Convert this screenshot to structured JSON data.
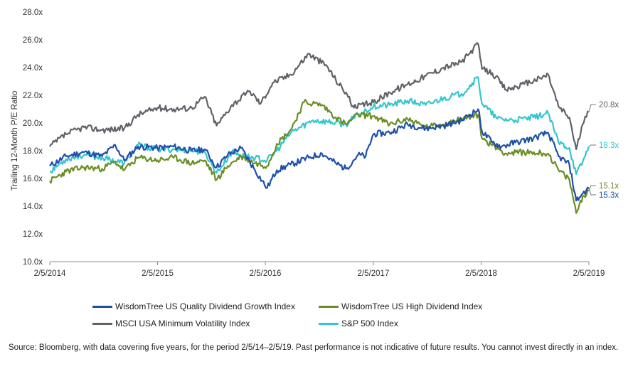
{
  "chart_data": {
    "type": "line",
    "title": "",
    "ylabel": "Trailing 12-Month P/E Ratio",
    "xlabel": "",
    "ylim": [
      10.0,
      28.0
    ],
    "xlim": [
      "2014-02-05",
      "2019-02-05"
    ],
    "y_ticks": [
      "10.0x",
      "12.0x",
      "14.0x",
      "16.0x",
      "18.0x",
      "20.0x",
      "22.0x",
      "24.0x",
      "26.0x",
      "28.0x"
    ],
    "y_tick_values": [
      10,
      12,
      14,
      16,
      18,
      20,
      22,
      24,
      26,
      28
    ],
    "x_ticks": [
      "2/5/2014",
      "2/5/2015",
      "2/5/2016",
      "2/5/2017",
      "2/5/2018",
      "2/5/2019"
    ],
    "x_tick_dates": [
      "2014-02-05",
      "2015-02-05",
      "2016-02-05",
      "2017-02-05",
      "2018-02-05",
      "2019-02-05"
    ],
    "grid": false,
    "legend_position": "bottom",
    "series": [
      {
        "name": "WisdomTree US Quality Dividend Growth Index",
        "color": "#1f4fa8",
        "end_label": "15.3x",
        "points": [
          [
            "2014-02-05",
            16.9
          ],
          [
            "2014-04-01",
            17.6
          ],
          [
            "2014-06-01",
            17.9
          ],
          [
            "2014-08-01",
            17.6
          ],
          [
            "2014-09-15",
            18.4
          ],
          [
            "2014-10-15",
            17.3
          ],
          [
            "2014-12-01",
            18.3
          ],
          [
            "2015-02-05",
            18.2
          ],
          [
            "2015-04-01",
            18.3
          ],
          [
            "2015-06-01",
            18.0
          ],
          [
            "2015-07-15",
            18.1
          ],
          [
            "2015-08-24",
            16.8
          ],
          [
            "2015-10-01",
            17.7
          ],
          [
            "2015-11-15",
            18.2
          ],
          [
            "2016-01-01",
            16.6
          ],
          [
            "2016-02-11",
            15.3
          ],
          [
            "2016-03-15",
            16.6
          ],
          [
            "2016-05-01",
            17.0
          ],
          [
            "2016-07-01",
            17.5
          ],
          [
            "2016-08-15",
            17.8
          ],
          [
            "2016-10-01",
            17.1
          ],
          [
            "2016-11-04",
            16.7
          ],
          [
            "2016-12-15",
            17.7
          ],
          [
            "2017-01-10",
            17.6
          ],
          [
            "2017-02-05",
            19.2
          ],
          [
            "2017-04-01",
            19.3
          ],
          [
            "2017-06-01",
            19.9
          ],
          [
            "2017-08-01",
            19.6
          ],
          [
            "2017-10-01",
            19.8
          ],
          [
            "2017-12-01",
            20.2
          ],
          [
            "2018-01-26",
            21.0
          ],
          [
            "2018-02-08",
            19.4
          ],
          [
            "2018-03-15",
            18.6
          ],
          [
            "2018-04-15",
            18.3
          ],
          [
            "2018-06-01",
            18.6
          ],
          [
            "2018-08-01",
            18.9
          ],
          [
            "2018-09-20",
            19.3
          ],
          [
            "2018-10-25",
            17.6
          ],
          [
            "2018-12-01",
            17.0
          ],
          [
            "2018-12-24",
            14.4
          ],
          [
            "2019-01-15",
            14.9
          ],
          [
            "2019-02-05",
            15.3
          ]
        ]
      },
      {
        "name": "WisdomTree US High Dividend Index",
        "color": "#6b8e23",
        "end_label": "15.1x",
        "points": [
          [
            "2014-02-05",
            15.8
          ],
          [
            "2014-04-01",
            16.5
          ],
          [
            "2014-06-01",
            16.8
          ],
          [
            "2014-08-01",
            16.7
          ],
          [
            "2014-09-15",
            17.2
          ],
          [
            "2014-10-15",
            16.6
          ],
          [
            "2014-12-01",
            17.5
          ],
          [
            "2015-02-05",
            17.3
          ],
          [
            "2015-04-01",
            17.5
          ],
          [
            "2015-06-01",
            17.1
          ],
          [
            "2015-07-15",
            17.3
          ],
          [
            "2015-08-24",
            15.9
          ],
          [
            "2015-10-01",
            16.9
          ],
          [
            "2015-11-15",
            17.6
          ],
          [
            "2016-01-01",
            17.1
          ],
          [
            "2016-02-11",
            16.9
          ],
          [
            "2016-03-15",
            18.5
          ],
          [
            "2016-05-01",
            19.5
          ],
          [
            "2016-06-15",
            21.5
          ],
          [
            "2016-08-15",
            21.3
          ],
          [
            "2016-10-01",
            20.4
          ],
          [
            "2016-11-04",
            19.9
          ],
          [
            "2016-12-15",
            20.6
          ],
          [
            "2017-02-05",
            20.5
          ],
          [
            "2017-04-01",
            19.9
          ],
          [
            "2017-06-01",
            20.3
          ],
          [
            "2017-08-01",
            19.7
          ],
          [
            "2017-10-01",
            19.9
          ],
          [
            "2017-12-01",
            20.3
          ],
          [
            "2018-01-26",
            20.6
          ],
          [
            "2018-02-08",
            18.9
          ],
          [
            "2018-03-15",
            18.4
          ],
          [
            "2018-05-01",
            17.8
          ],
          [
            "2018-07-01",
            17.9
          ],
          [
            "2018-09-20",
            17.8
          ],
          [
            "2018-10-25",
            16.6
          ],
          [
            "2018-12-01",
            15.9
          ],
          [
            "2018-12-24",
            13.5
          ],
          [
            "2019-01-15",
            14.7
          ],
          [
            "2019-02-05",
            15.1
          ]
        ]
      },
      {
        "name": "MSCI USA Minimum Volatility Index",
        "color": "#5f6368",
        "end_label": "20.8x",
        "points": [
          [
            "2014-02-05",
            18.3
          ],
          [
            "2014-04-01",
            19.2
          ],
          [
            "2014-06-01",
            19.7
          ],
          [
            "2014-08-01",
            19.5
          ],
          [
            "2014-10-15",
            19.6
          ],
          [
            "2014-12-01",
            20.6
          ],
          [
            "2015-02-05",
            21.1
          ],
          [
            "2015-04-01",
            21.0
          ],
          [
            "2015-06-01",
            21.1
          ],
          [
            "2015-07-15",
            21.9
          ],
          [
            "2015-08-24",
            19.8
          ],
          [
            "2015-10-15",
            21.3
          ],
          [
            "2015-12-15",
            22.3
          ],
          [
            "2016-01-20",
            21.4
          ],
          [
            "2016-03-01",
            22.9
          ],
          [
            "2016-05-01",
            23.5
          ],
          [
            "2016-07-01",
            25.0
          ],
          [
            "2016-09-01",
            24.1
          ],
          [
            "2016-10-01",
            23.1
          ],
          [
            "2016-11-04",
            22.2
          ],
          [
            "2016-12-01",
            21.1
          ],
          [
            "2017-02-05",
            21.5
          ],
          [
            "2017-04-01",
            22.2
          ],
          [
            "2017-06-01",
            22.8
          ],
          [
            "2017-08-01",
            23.4
          ],
          [
            "2017-10-01",
            24.0
          ],
          [
            "2017-12-01",
            24.4
          ],
          [
            "2018-01-26",
            25.7
          ],
          [
            "2018-02-08",
            23.9
          ],
          [
            "2018-03-15",
            23.6
          ],
          [
            "2018-05-01",
            22.4
          ],
          [
            "2018-07-01",
            22.8
          ],
          [
            "2018-09-01",
            23.3
          ],
          [
            "2018-09-20",
            23.5
          ],
          [
            "2018-10-25",
            21.2
          ],
          [
            "2018-12-01",
            20.4
          ],
          [
            "2018-12-24",
            18.1
          ],
          [
            "2019-01-15",
            19.9
          ],
          [
            "2019-02-05",
            20.8
          ]
        ]
      },
      {
        "name": "S&P 500 Index",
        "color": "#33c5d0",
        "end_label": "18.3x",
        "points": [
          [
            "2014-02-05",
            16.5
          ],
          [
            "2014-04-01",
            17.4
          ],
          [
            "2014-06-01",
            17.7
          ],
          [
            "2014-08-01",
            17.5
          ],
          [
            "2014-10-15",
            17.1
          ],
          [
            "2014-12-01",
            18.4
          ],
          [
            "2015-02-05",
            18.1
          ],
          [
            "2015-04-01",
            18.1
          ],
          [
            "2015-06-01",
            18.0
          ],
          [
            "2015-07-15",
            17.9
          ],
          [
            "2015-08-24",
            16.4
          ],
          [
            "2015-10-15",
            17.9
          ],
          [
            "2015-12-01",
            17.6
          ],
          [
            "2016-02-11",
            17.3
          ],
          [
            "2016-03-15",
            18.0
          ],
          [
            "2016-05-01",
            19.3
          ],
          [
            "2016-07-15",
            20.2
          ],
          [
            "2016-09-01",
            20.1
          ],
          [
            "2016-11-04",
            19.9
          ],
          [
            "2016-12-15",
            20.6
          ],
          [
            "2017-02-05",
            21.2
          ],
          [
            "2017-04-01",
            21.3
          ],
          [
            "2017-06-01",
            21.6
          ],
          [
            "2017-08-01",
            21.3
          ],
          [
            "2017-10-01",
            21.8
          ],
          [
            "2017-12-01",
            22.1
          ],
          [
            "2018-01-26",
            23.3
          ],
          [
            "2018-02-08",
            21.4
          ],
          [
            "2018-04-01",
            20.3
          ],
          [
            "2018-06-01",
            20.2
          ],
          [
            "2018-08-01",
            20.4
          ],
          [
            "2018-09-20",
            20.7
          ],
          [
            "2018-10-25",
            18.6
          ],
          [
            "2018-12-01",
            18.2
          ],
          [
            "2018-12-24",
            16.3
          ],
          [
            "2019-01-15",
            17.2
          ],
          [
            "2019-02-05",
            18.3
          ]
        ]
      }
    ]
  },
  "source_note": "Source: Bloomberg, with data covering five years, for the period 2/5/14–2/5/19. Past performance is not indicative of future results. You cannot invest directly in an index."
}
